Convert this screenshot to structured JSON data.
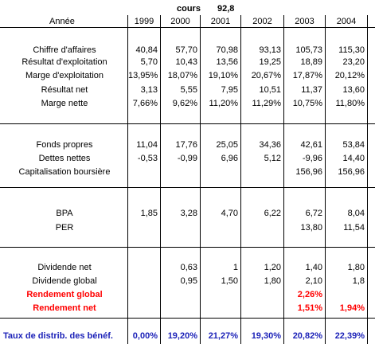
{
  "cours": {
    "label": "cours",
    "value": "92,8"
  },
  "header": {
    "label": "Année",
    "years": [
      "1999",
      "2000",
      "2001",
      "2002",
      "2003",
      "2004"
    ]
  },
  "sections": [
    {
      "rows": [
        {
          "label": "Chiffre d'affaires",
          "values": [
            "40,84",
            "57,70",
            "70,98",
            "93,13",
            "105,73",
            "115,30"
          ]
        },
        {
          "label": "Résultat d'exploitation",
          "values": [
            "5,70",
            "10,43",
            "13,56",
            "19,25",
            "18,89",
            "23,20"
          ]
        },
        {
          "label": "Marge d'exploitation",
          "values": [
            "13,95%",
            "18,07%",
            "19,10%",
            "20,67%",
            "17,87%",
            "20,12%"
          ]
        },
        {
          "label": "Résultat net",
          "values": [
            "3,13",
            "5,55",
            "7,95",
            "10,51",
            "11,37",
            "13,60"
          ]
        },
        {
          "label": "Marge nette",
          "values": [
            "7,66%",
            "9,62%",
            "11,20%",
            "11,29%",
            "10,75%",
            "11,80%"
          ]
        }
      ]
    },
    {
      "rows": [
        {
          "label": "Fonds propres",
          "values": [
            "11,04",
            "17,76",
            "25,05",
            "34,36",
            "42,61",
            "53,84"
          ]
        },
        {
          "label": "Dettes nettes",
          "values": [
            "-0,53",
            "-0,99",
            "6,96",
            "5,12",
            "-9,96",
            "14,40"
          ]
        },
        {
          "label": "Capitalisation boursière",
          "values": [
            "",
            "",
            "",
            "",
            "156,96",
            "156,96"
          ]
        }
      ]
    },
    {
      "rows": [
        {
          "label": "BPA",
          "values": [
            "1,85",
            "3,28",
            "4,70",
            "6,22",
            "6,72",
            "8,04"
          ]
        },
        {
          "label": "PER",
          "values": [
            "",
            "",
            "",
            "",
            "13,80",
            "11,54"
          ]
        }
      ]
    },
    {
      "rows": [
        {
          "label": "Dividende net",
          "values": [
            "",
            "0,63",
            "1",
            "1,20",
            "1,40",
            "1,80"
          ]
        },
        {
          "label": "Dividende global",
          "values": [
            "",
            "0,95",
            "1,50",
            "1,80",
            "2,10",
            "1,8"
          ]
        },
        {
          "label": "Rendement global",
          "values": [
            "",
            "",
            "",
            "",
            "2,26%",
            ""
          ],
          "style": "red"
        },
        {
          "label": "Rendement net",
          "values": [
            "",
            "",
            "",
            "",
            "1,51%",
            "1,94%"
          ],
          "style": "red"
        }
      ]
    }
  ],
  "footer": {
    "label": "Taux de distrib. des bénéf.",
    "values": [
      "0,00%",
      "19,20%",
      "21,27%",
      "19,30%",
      "20,82%",
      "22,39%"
    ]
  },
  "colors": {
    "red": "#ff0000",
    "blue": "#1c22b8"
  }
}
